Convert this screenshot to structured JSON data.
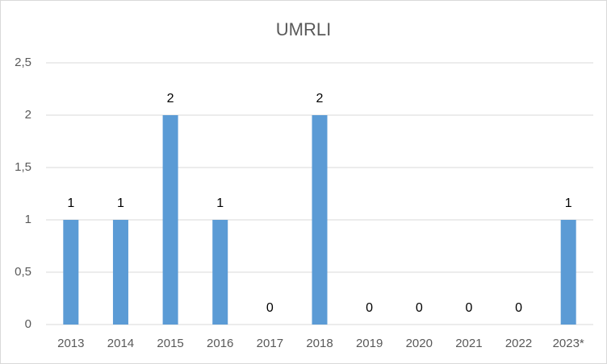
{
  "chart_data": {
    "type": "bar",
    "title": "UMRLI",
    "categories": [
      "2013",
      "2014",
      "2015",
      "2016",
      "2017",
      "2018",
      "2019",
      "2020",
      "2021",
      "2022",
      "2023*"
    ],
    "values": [
      1,
      1,
      2,
      1,
      0,
      2,
      0,
      0,
      0,
      0,
      1
    ],
    "color": "#5b9bd5",
    "ylim": [
      0,
      2.5
    ],
    "yticks": [
      0,
      {
        "value": 0.5,
        "label": "0,5"
      },
      1,
      {
        "value": 1.5,
        "label": "1,5"
      },
      2,
      {
        "value": 2.5,
        "label": "2,5"
      }
    ],
    "grid": true
  }
}
